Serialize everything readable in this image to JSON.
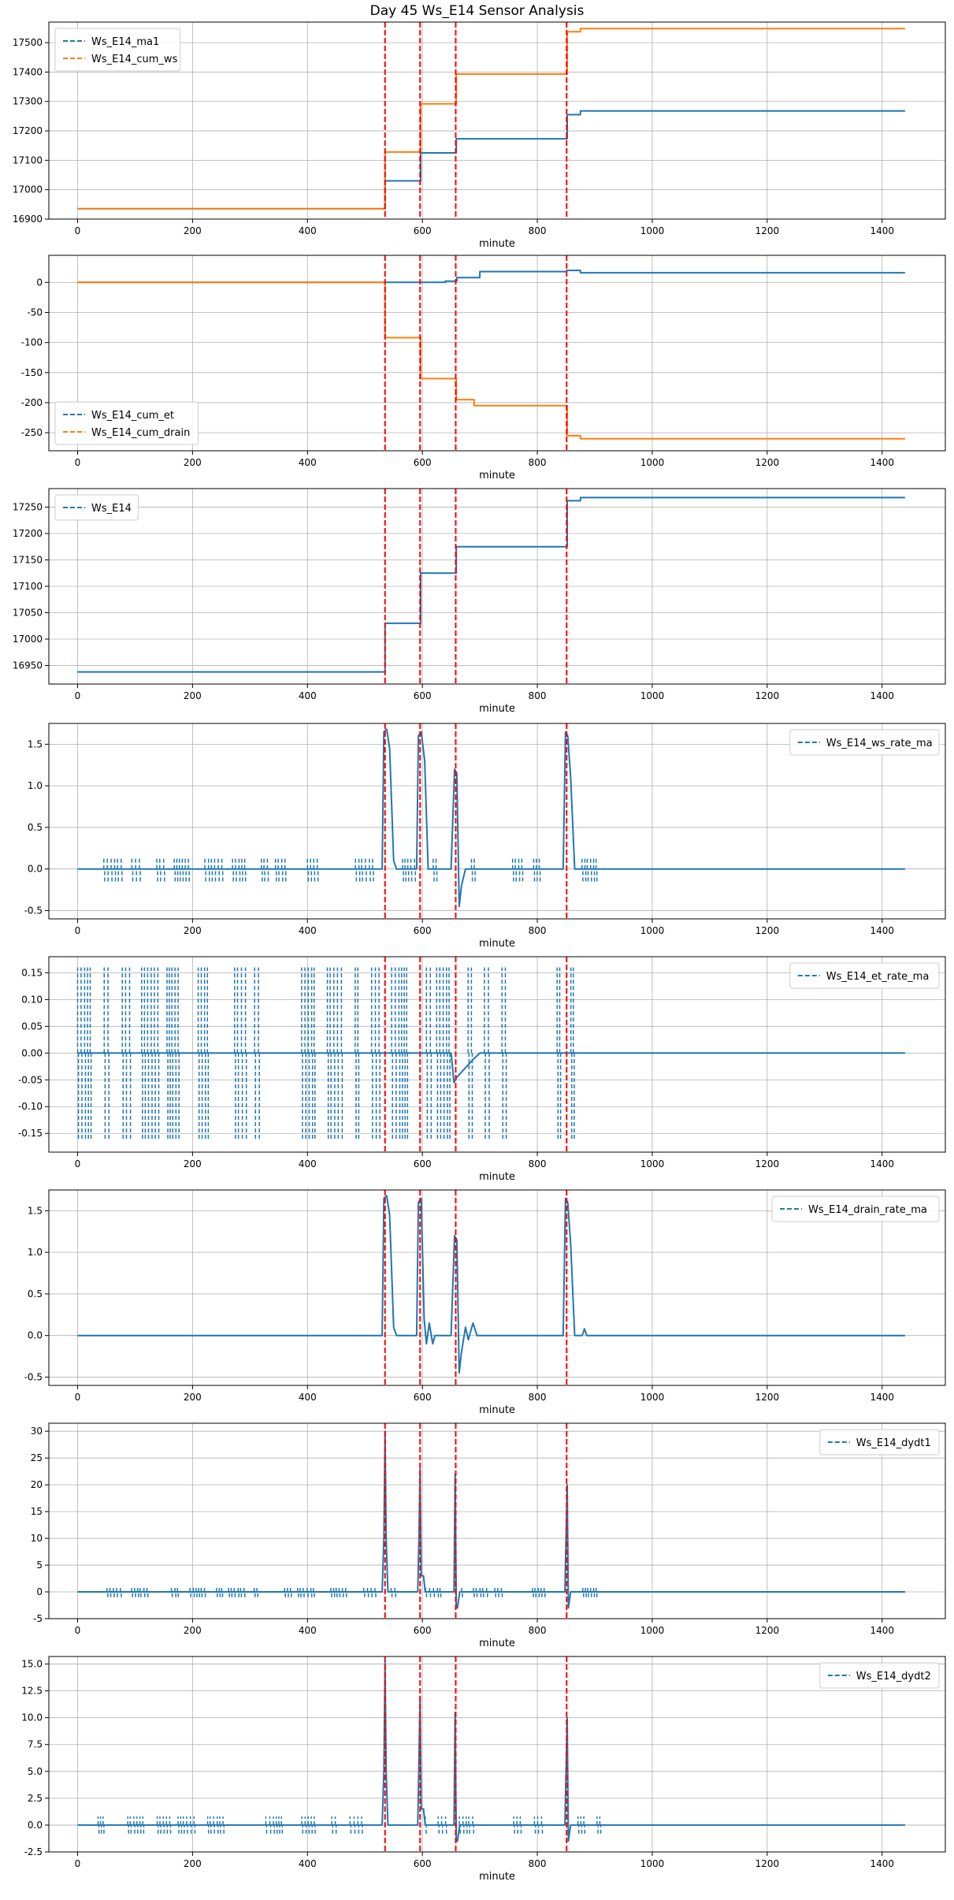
{
  "title": "Day 45 Ws_E14 Sensor Analysis",
  "colors": {
    "blue": "#1f77b4",
    "orange": "#ff7f0e",
    "vline": "#ff0000",
    "grid": "#b0b0b0"
  },
  "chart_data": [
    {
      "type": "line",
      "xlabel": "minute",
      "xlim": [
        -50,
        1510
      ],
      "xticks": [
        0,
        200,
        400,
        600,
        800,
        1000,
        1200,
        1400
      ],
      "ylim": [
        16900,
        17570
      ],
      "yticks": [
        16900,
        17000,
        17100,
        17200,
        17300,
        17400,
        17500
      ],
      "ytick_labels": [
        "16900",
        "17000",
        "17100",
        "17200",
        "17300",
        "17400",
        "17500"
      ],
      "grid": true,
      "legend": "upper left",
      "vlines": [
        535,
        596,
        658,
        851
      ],
      "series": [
        {
          "name": "Ws_E14_ma1",
          "color": "blue",
          "style": "step",
          "x": [
            0,
            534,
            535,
            596,
            597,
            658,
            659,
            851,
            852,
            875,
            1440
          ],
          "y": [
            16935,
            16935,
            17030,
            17030,
            17125,
            17125,
            17173,
            17173,
            17255,
            17268,
            17268
          ]
        },
        {
          "name": "Ws_E14_cum_ws",
          "color": "orange",
          "style": "step",
          "x": [
            0,
            534,
            535,
            596,
            597,
            658,
            659,
            851,
            852,
            875,
            1440
          ],
          "y": [
            16935,
            16935,
            17128,
            17128,
            17292,
            17292,
            17393,
            17393,
            17537,
            17548,
            17548
          ]
        }
      ]
    },
    {
      "type": "line",
      "xlabel": "minute",
      "xlim": [
        -50,
        1510
      ],
      "xticks": [
        0,
        200,
        400,
        600,
        800,
        1000,
        1200,
        1400
      ],
      "ylim": [
        -280,
        45
      ],
      "yticks": [
        -250,
        -200,
        -150,
        -100,
        -50,
        0
      ],
      "ytick_labels": [
        "-250",
        "-200",
        "-150",
        "-100",
        "-50",
        "0"
      ],
      "grid": true,
      "legend": "lower left",
      "vlines": [
        535,
        596,
        658,
        851
      ],
      "series": [
        {
          "name": "Ws_E14_cum_et",
          "color": "blue",
          "style": "step",
          "x": [
            0,
            534,
            535,
            640,
            660,
            700,
            851,
            852,
            875,
            1440
          ],
          "y": [
            0,
            0,
            0,
            2,
            8,
            18,
            20,
            20,
            16,
            16
          ]
        },
        {
          "name": "Ws_E14_cum_drain",
          "color": "orange",
          "style": "step",
          "x": [
            0,
            534,
            535,
            596,
            597,
            658,
            659,
            690,
            851,
            852,
            875,
            1440
          ],
          "y": [
            0,
            0,
            -92,
            -92,
            -160,
            -160,
            -195,
            -205,
            -205,
            -255,
            -260,
            -260
          ]
        }
      ]
    },
    {
      "type": "line",
      "xlabel": "minute",
      "xlim": [
        -50,
        1510
      ],
      "xticks": [
        0,
        200,
        400,
        600,
        800,
        1000,
        1200,
        1400
      ],
      "ylim": [
        16915,
        17285
      ],
      "yticks": [
        16950,
        17000,
        17050,
        17100,
        17150,
        17200,
        17250
      ],
      "ytick_labels": [
        "16950",
        "17000",
        "17050",
        "17100",
        "17150",
        "17200",
        "17250"
      ],
      "grid": true,
      "legend": "upper left",
      "vlines": [
        535,
        596,
        658,
        851
      ],
      "series": [
        {
          "name": "Ws_E14",
          "color": "blue",
          "style": "step",
          "x": [
            0,
            534,
            535,
            596,
            597,
            658,
            659,
            851,
            852,
            875,
            1440
          ],
          "y": [
            16938,
            16938,
            17030,
            17030,
            17125,
            17125,
            17175,
            17175,
            17262,
            17268,
            17268
          ]
        }
      ]
    },
    {
      "type": "line",
      "xlabel": "minute",
      "xlim": [
        -50,
        1510
      ],
      "xticks": [
        0,
        200,
        400,
        600,
        800,
        1000,
        1200,
        1400
      ],
      "ylim": [
        -0.6,
        1.75
      ],
      "yticks": [
        -0.5,
        0.0,
        0.5,
        1.0,
        1.5
      ],
      "ytick_labels": [
        "-0.5",
        "0.0",
        "0.5",
        "1.0",
        "1.5"
      ],
      "grid": true,
      "legend": "upper right",
      "vlines": [
        535,
        596,
        658,
        851
      ],
      "noise": {
        "x_from": 0,
        "x_to": 910,
        "low": -0.15,
        "high": 0.15
      },
      "series": [
        {
          "name": "Ws_E14_ws_rate_ma",
          "color": "blue",
          "style": "line",
          "x": [
            0,
            530,
            533,
            538,
            543,
            550,
            555,
            590,
            593,
            598,
            604,
            610,
            650,
            656,
            660,
            664,
            668,
            675,
            845,
            849,
            853,
            858,
            865,
            1440
          ],
          "y": [
            0,
            0,
            1.65,
            1.68,
            1.45,
            0.1,
            0,
            0,
            1.6,
            1.65,
            1.3,
            0,
            0,
            1.2,
            1.15,
            -0.45,
            -0.2,
            0,
            0,
            1.65,
            1.6,
            1.1,
            0,
            0
          ]
        }
      ]
    },
    {
      "type": "line",
      "xlabel": "minute",
      "xlim": [
        -50,
        1510
      ],
      "xticks": [
        0,
        200,
        400,
        600,
        800,
        1000,
        1200,
        1400
      ],
      "ylim": [
        -0.185,
        0.18
      ],
      "yticks": [
        -0.15,
        -0.1,
        -0.05,
        0.0,
        0.05,
        0.1,
        0.15
      ],
      "ytick_labels": [
        "-0.15",
        "-0.10",
        "-0.05",
        "0.00",
        "0.05",
        "0.10",
        "0.15"
      ],
      "grid": true,
      "legend": "upper right",
      "vlines": [
        535,
        596,
        658,
        851
      ],
      "noise": {
        "x_from": 0,
        "x_to": 905,
        "low": -0.16,
        "high": 0.16
      },
      "series": [
        {
          "name": "Ws_E14_et_rate_ma",
          "color": "blue",
          "style": "line",
          "x": [
            0,
            650,
            655,
            660,
            690,
            700,
            1440
          ],
          "y": [
            0,
            0,
            -0.055,
            -0.045,
            -0.01,
            0,
            0
          ]
        }
      ]
    },
    {
      "type": "line",
      "xlabel": "minute",
      "xlim": [
        -50,
        1510
      ],
      "xticks": [
        0,
        200,
        400,
        600,
        800,
        1000,
        1200,
        1400
      ],
      "ylim": [
        -0.6,
        1.75
      ],
      "yticks": [
        -0.5,
        0.0,
        0.5,
        1.0,
        1.5
      ],
      "ytick_labels": [
        "-0.5",
        "0.0",
        "0.5",
        "1.0",
        "1.5"
      ],
      "grid": true,
      "legend": "upper right",
      "vlines": [
        535,
        596,
        658,
        851
      ],
      "series": [
        {
          "name": "Ws_E14_drain_rate_ma",
          "color": "blue",
          "style": "line",
          "x": [
            0,
            530,
            533,
            538,
            543,
            550,
            555,
            590,
            593,
            598,
            603,
            607,
            612,
            618,
            622,
            650,
            656,
            660,
            664,
            668,
            675,
            680,
            688,
            695,
            845,
            849,
            853,
            858,
            865,
            878,
            882,
            886,
            1440
          ],
          "y": [
            0,
            0,
            1.65,
            1.68,
            1.45,
            0.1,
            0,
            0,
            1.6,
            1.65,
            0.2,
            -0.1,
            0.15,
            -0.1,
            0,
            0,
            1.2,
            1.15,
            -0.45,
            -0.2,
            0.1,
            -0.05,
            0.15,
            0,
            0,
            1.65,
            1.6,
            1.1,
            0,
            0,
            0.08,
            0,
            0
          ]
        }
      ]
    },
    {
      "type": "line",
      "xlabel": "minute",
      "xlim": [
        -50,
        1510
      ],
      "xticks": [
        0,
        200,
        400,
        600,
        800,
        1000,
        1200,
        1400
      ],
      "ylim": [
        -5,
        31.5
      ],
      "yticks": [
        -5,
        0,
        5,
        10,
        15,
        20,
        25,
        30
      ],
      "ytick_labels": [
        "-5",
        "0",
        "5",
        "10",
        "15",
        "20",
        "25",
        "30"
      ],
      "grid": true,
      "legend": "upper right",
      "vlines": [
        535,
        596,
        658,
        851
      ],
      "noise": {
        "x_from": 0,
        "x_to": 910,
        "low": -1,
        "high": 1
      },
      "series": [
        {
          "name": "Ws_E14_dydt1",
          "color": "blue",
          "style": "line",
          "x": [
            0,
            530,
            533,
            535,
            537,
            540,
            592,
            594,
            596,
            598,
            602,
            605,
            655,
            657,
            659,
            661,
            665,
            848,
            850,
            852,
            854,
            858,
            1440
          ],
          "y": [
            0,
            0,
            10,
            30,
            10,
            0,
            0,
            10,
            23,
            3,
            3,
            0,
            0,
            22,
            -3,
            -3,
            0,
            0,
            10,
            20,
            -3,
            0,
            0
          ]
        }
      ]
    },
    {
      "type": "line",
      "xlabel": "minute",
      "xlim": [
        -50,
        1510
      ],
      "xticks": [
        0,
        200,
        400,
        600,
        800,
        1000,
        1200,
        1400
      ],
      "ylim": [
        -2.5,
        15.7
      ],
      "yticks": [
        -2.5,
        0.0,
        2.5,
        5.0,
        7.5,
        10.0,
        12.5,
        15.0
      ],
      "ytick_labels": [
        "-2.5",
        "0.0",
        "2.5",
        "5.0",
        "7.5",
        "10.0",
        "12.5",
        "15.0"
      ],
      "grid": true,
      "legend": "upper right",
      "vlines": [
        535,
        596,
        658,
        851
      ],
      "noise": {
        "x_from": 0,
        "x_to": 910,
        "low": -0.8,
        "high": 0.8
      },
      "series": [
        {
          "name": "Ws_E14_dydt2",
          "color": "blue",
          "style": "line",
          "x": [
            0,
            530,
            533,
            535,
            537,
            540,
            592,
            594,
            596,
            598,
            602,
            605,
            655,
            657,
            659,
            661,
            665,
            848,
            850,
            852,
            854,
            858,
            1440
          ],
          "y": [
            0,
            0,
            5,
            15.2,
            5,
            0,
            0,
            6,
            12,
            1.5,
            1.5,
            0,
            0,
            10.5,
            -1.5,
            -1.5,
            0,
            0,
            5,
            10,
            -1.5,
            0,
            0
          ]
        }
      ]
    }
  ]
}
